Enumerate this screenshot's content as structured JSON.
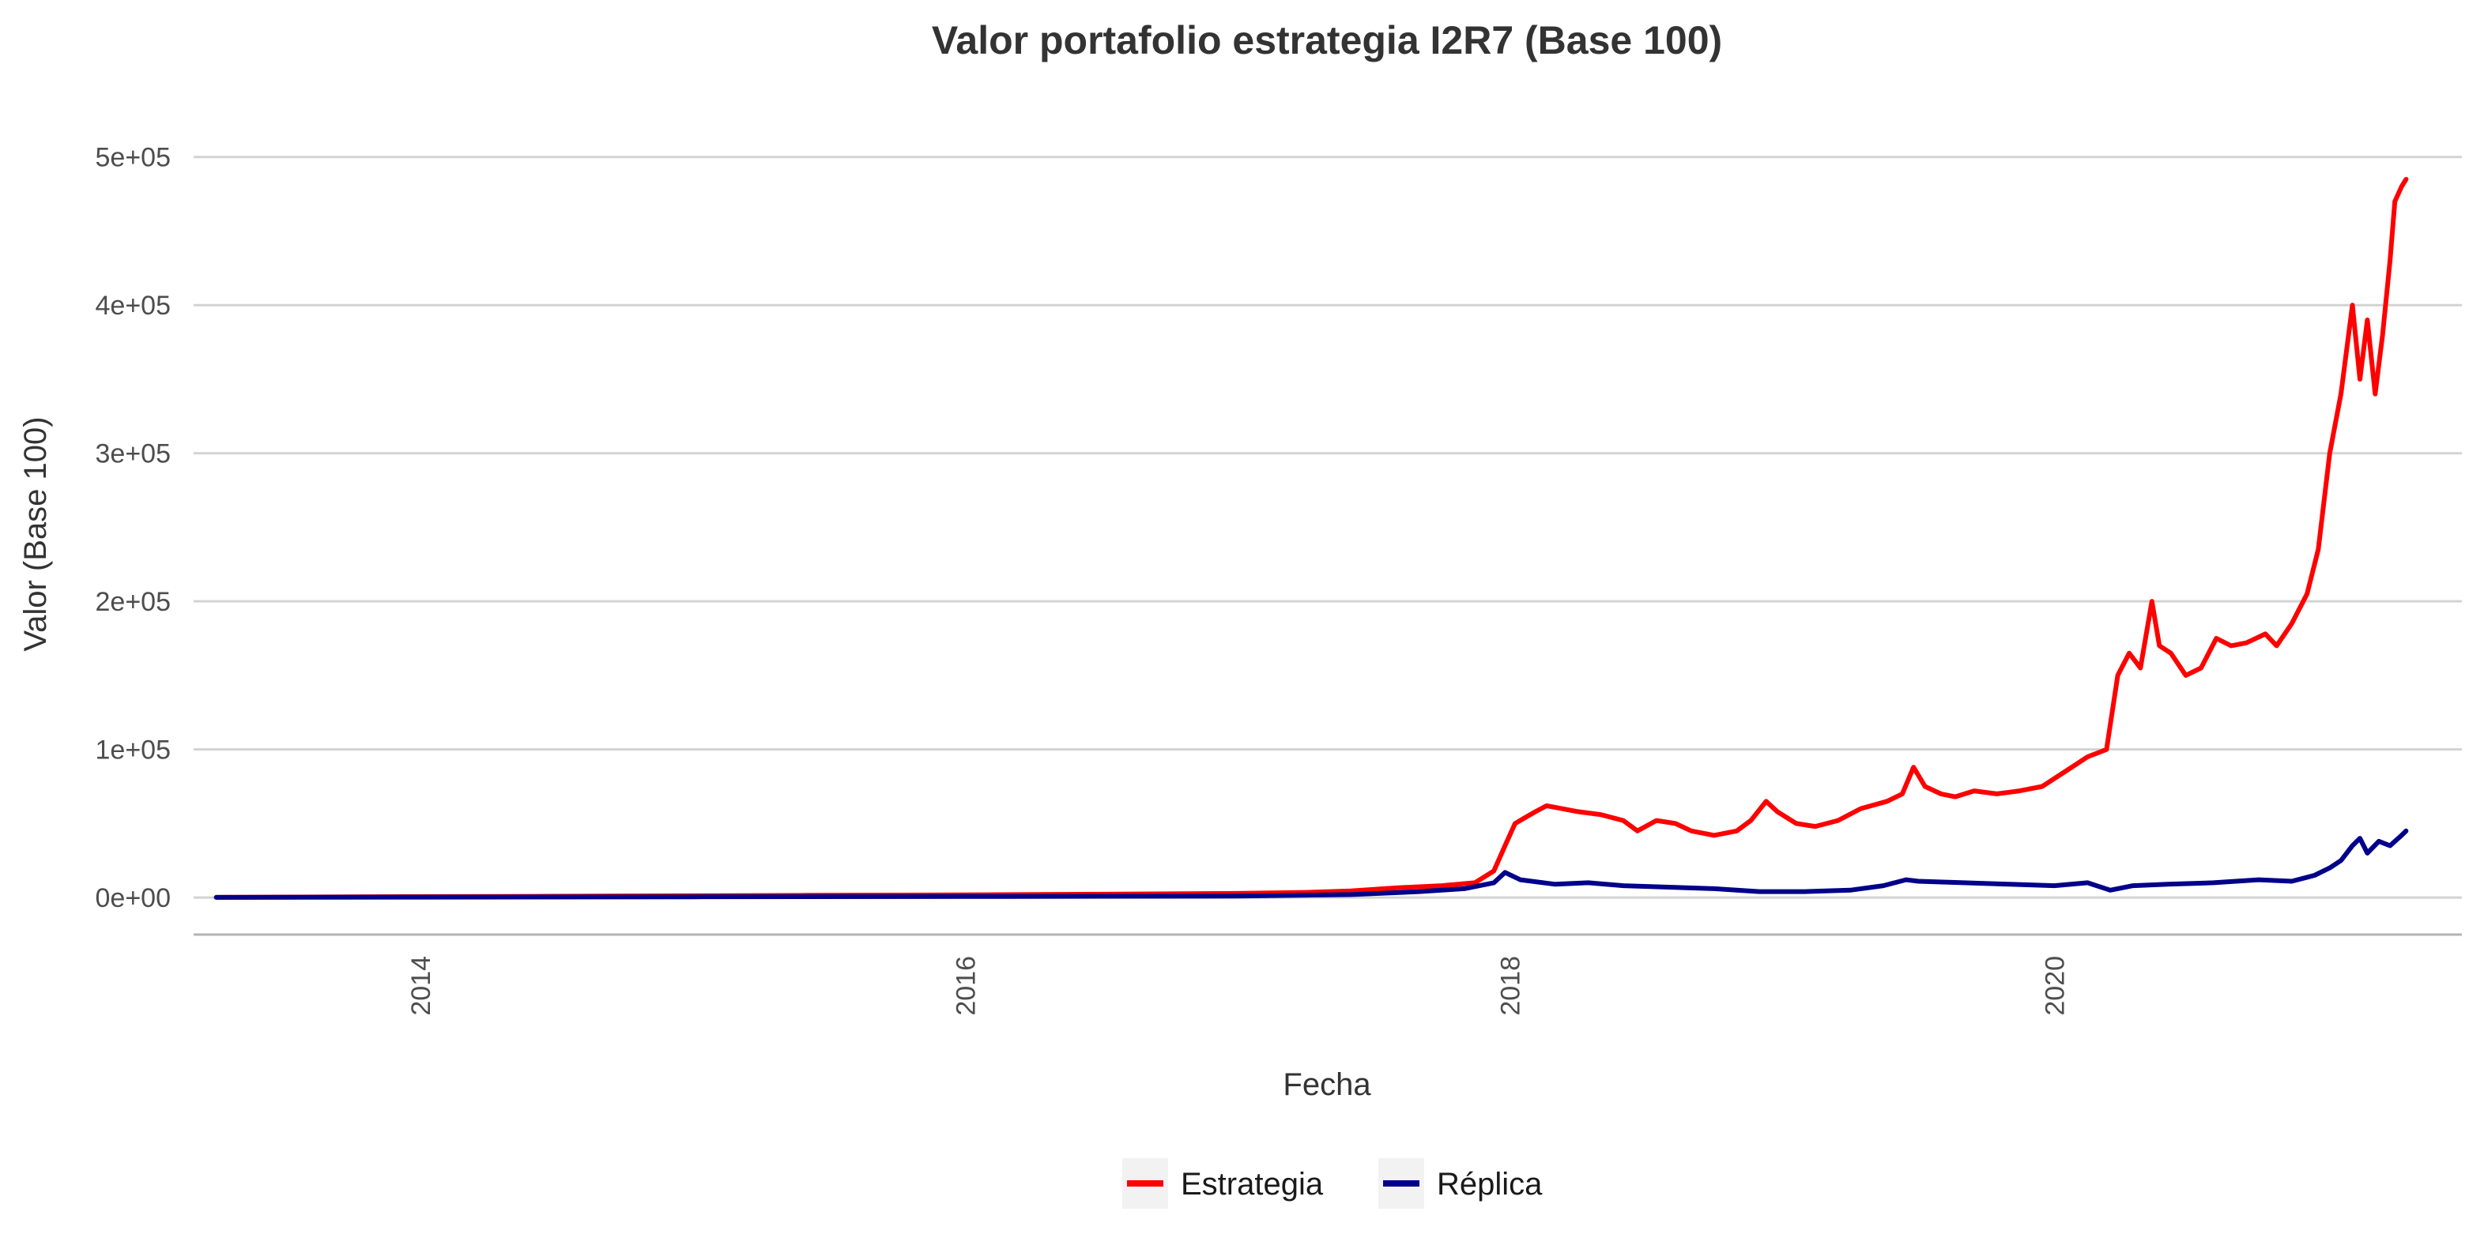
{
  "chart_data": {
    "type": "line",
    "title": "Valor portafolio estrategia I2R7 (Base 100)",
    "xlabel": "Fecha",
    "ylabel": "Valor (Base 100)",
    "xlim": [
      "2013-03-01",
      "2021-06-30"
    ],
    "ylim": [
      -25000,
      510000
    ],
    "x_ticks": [
      "2014",
      "2016",
      "2018",
      "2020"
    ],
    "y_ticks": [
      "0e+00",
      "1e+05",
      "2e+05",
      "3e+05",
      "4e+05",
      "5e+05"
    ],
    "grid": "horizontal",
    "legend_position": "bottom",
    "series": [
      {
        "name": "Estrategia",
        "color": "#ff0000",
        "x": [
          "2013-04-01",
          "2013-10-01",
          "2014-06-01",
          "2015-01-01",
          "2015-06-01",
          "2016-01-01",
          "2016-06-01",
          "2017-01-01",
          "2017-04-01",
          "2017-06-01",
          "2017-08-01",
          "2017-10-01",
          "2017-11-15",
          "2017-12-10",
          "2017-12-25",
          "2018-01-08",
          "2018-01-25",
          "2018-02-05",
          "2018-02-20",
          "2018-03-10",
          "2018-04-01",
          "2018-05-01",
          "2018-06-01",
          "2018-06-20",
          "2018-07-15",
          "2018-08-10",
          "2018-09-01",
          "2018-10-01",
          "2018-11-01",
          "2018-11-20",
          "2018-12-10",
          "2018-12-25",
          "2019-01-20",
          "2019-02-15",
          "2019-03-15",
          "2019-04-15",
          "2019-05-20",
          "2019-06-10",
          "2019-06-25",
          "2019-07-10",
          "2019-08-01",
          "2019-08-20",
          "2019-09-15",
          "2019-10-15",
          "2019-11-15",
          "2019-12-15",
          "2020-01-15",
          "2020-02-15",
          "2020-03-10",
          "2020-03-25",
          "2020-04-10",
          "2020-04-25",
          "2020-05-10",
          "2020-05-20",
          "2020-06-05",
          "2020-06-25",
          "2020-07-15",
          "2020-08-05",
          "2020-08-25",
          "2020-09-15",
          "2020-10-10",
          "2020-10-25",
          "2020-11-15",
          "2020-12-05",
          "2020-12-20",
          "2021-01-05",
          "2021-01-20",
          "2021-02-05",
          "2021-02-15",
          "2021-02-25",
          "2021-03-05",
          "2021-03-15",
          "2021-03-25",
          "2021-04-01",
          "2021-04-10",
          "2021-04-16"
        ],
        "values": [
          100,
          500,
          800,
          1200,
          1500,
          1800,
          2200,
          2800,
          3500,
          4500,
          6500,
          8000,
          10000,
          18000,
          35000,
          50000,
          55000,
          58000,
          62000,
          60000,
          58000,
          56000,
          52000,
          45000,
          52000,
          50000,
          45000,
          42000,
          45000,
          52000,
          65000,
          58000,
          50000,
          48000,
          52000,
          60000,
          65000,
          70000,
          88000,
          75000,
          70000,
          68000,
          72000,
          70000,
          72000,
          75000,
          85000,
          95000,
          100000,
          150000,
          165000,
          155000,
          200000,
          170000,
          165000,
          150000,
          155000,
          175000,
          170000,
          172000,
          178000,
          170000,
          185000,
          205000,
          235000,
          300000,
          340000,
          400000,
          350000,
          390000,
          340000,
          380000,
          430000,
          470000,
          480000,
          485000
        ]
      },
      {
        "name": "Réplica",
        "color": "#00008b",
        "x": [
          "2013-04-01",
          "2014-01-01",
          "2015-01-01",
          "2016-01-01",
          "2017-01-01",
          "2017-06-01",
          "2017-09-01",
          "2017-11-01",
          "2017-12-10",
          "2017-12-25",
          "2018-01-15",
          "2018-03-01",
          "2018-04-15",
          "2018-06-01",
          "2018-08-01",
          "2018-10-01",
          "2018-12-01",
          "2019-02-01",
          "2019-04-01",
          "2019-05-15",
          "2019-06-15",
          "2019-07-01",
          "2019-09-01",
          "2019-11-01",
          "2020-01-01",
          "2020-02-15",
          "2020-03-15",
          "2020-04-15",
          "2020-06-01",
          "2020-08-01",
          "2020-10-01",
          "2020-11-15",
          "2020-12-15",
          "2021-01-05",
          "2021-01-20",
          "2021-02-05",
          "2021-02-15",
          "2021-02-25",
          "2021-03-10",
          "2021-03-25",
          "2021-04-10",
          "2021-04-16"
        ],
        "values": [
          100,
          300,
          500,
          700,
          1000,
          2000,
          4000,
          6000,
          10000,
          17000,
          12000,
          9000,
          10000,
          8000,
          7000,
          6000,
          4000,
          4000,
          5000,
          8000,
          12000,
          11000,
          10000,
          9000,
          8000,
          10000,
          5000,
          8000,
          9000,
          10000,
          12000,
          11000,
          15000,
          20000,
          25000,
          35000,
          40000,
          30000,
          38000,
          35000,
          42000,
          45000
        ]
      }
    ]
  }
}
